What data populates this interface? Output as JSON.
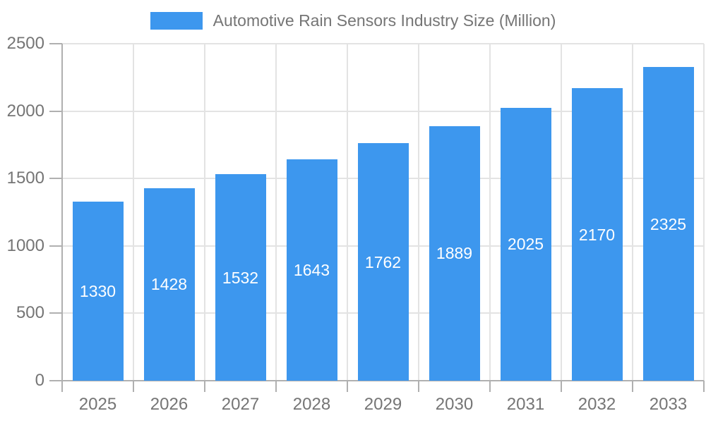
{
  "legend": {
    "label": "Automotive Rain Sensors Industry Size (Million)"
  },
  "chart_data": {
    "type": "bar",
    "title": "",
    "series_name": "Automotive Rain Sensors Industry Size (Million)",
    "categories": [
      "2025",
      "2026",
      "2027",
      "2028",
      "2029",
      "2030",
      "2031",
      "2032",
      "2033"
    ],
    "values": [
      1330,
      1428,
      1532,
      1643,
      1762,
      1889,
      2025,
      2170,
      2325
    ],
    "xlabel": "",
    "ylabel": "",
    "ylim": [
      0,
      2500
    ],
    "yticks": [
      0,
      500,
      1000,
      1500,
      2000,
      2500
    ],
    "grid": true,
    "legend_position": "top",
    "value_labels": "inside-center"
  },
  "colors": {
    "bar": "#3D97EE",
    "grid": "#E3E3E3",
    "axis": "#B0B0B0",
    "tick_text": "#757575",
    "legend_text": "#757575",
    "value_label": "#FFFFFF",
    "background": "#FFFFFF"
  }
}
